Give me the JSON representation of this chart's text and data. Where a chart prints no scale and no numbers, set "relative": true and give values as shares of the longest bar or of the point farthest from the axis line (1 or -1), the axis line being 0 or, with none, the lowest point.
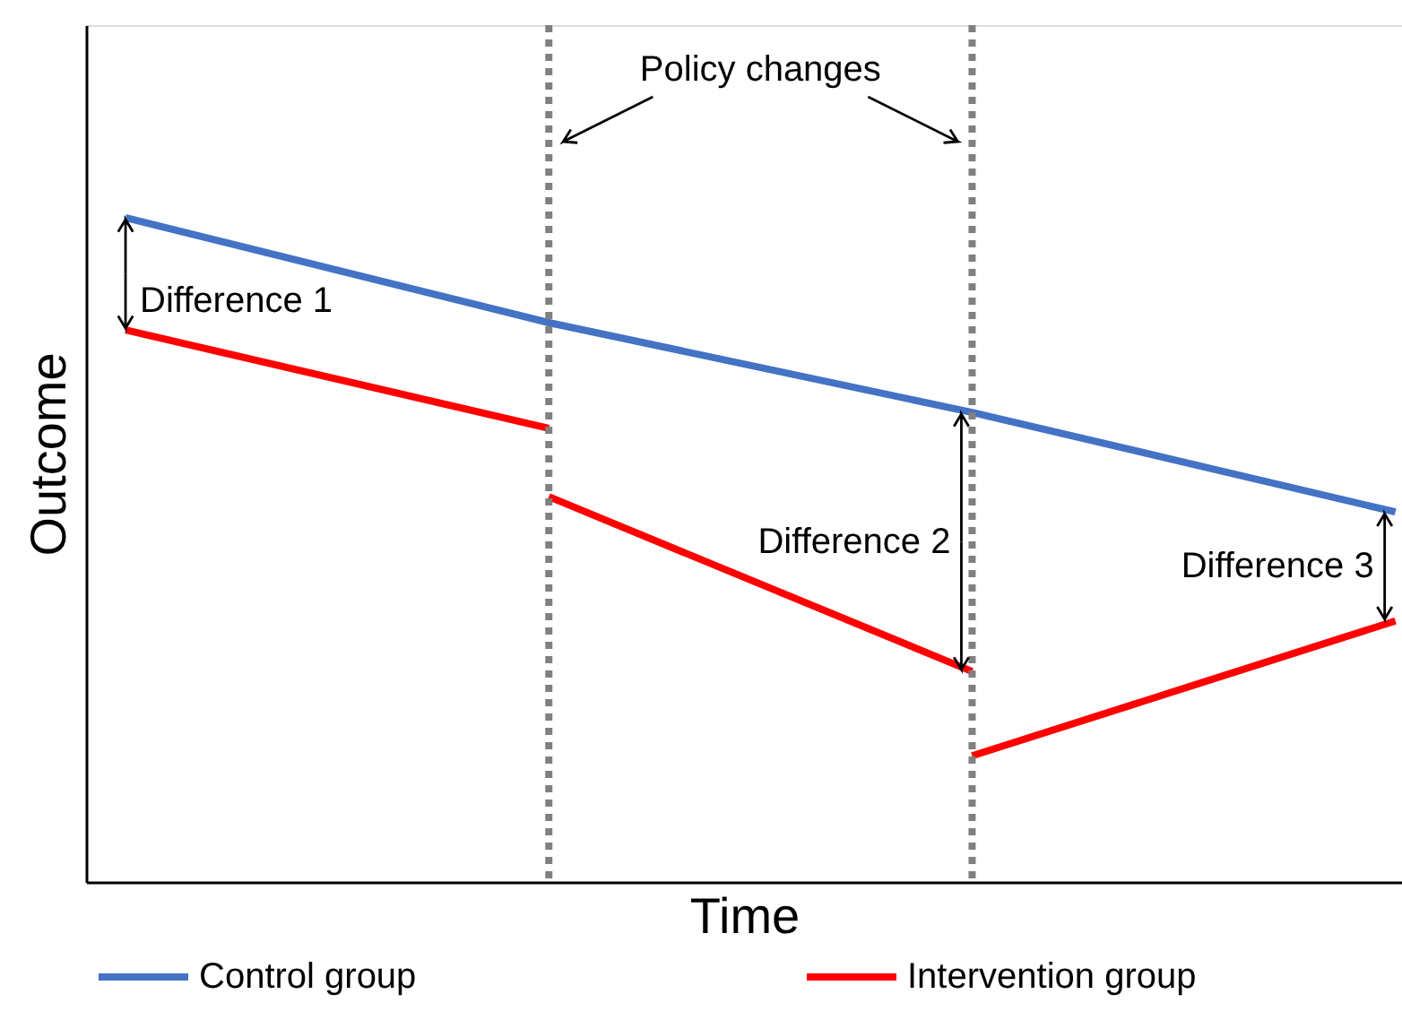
{
  "chart_data": {
    "type": "line",
    "relative": true,
    "xlabel": "Time",
    "ylabel": "Outcome",
    "categories": [
      null,
      null,
      null,
      null
    ],
    "grid": false,
    "legend": "bottom",
    "line_style": "solid",
    "series": [
      {
        "name": "Control group",
        "color": "#4472c4",
        "values": [
          1,
          0.842,
          0.707,
          0.557
        ]
      },
      {
        "name": "Intervention group",
        "color": "#ff0000",
        "values": [
          0.831,
          0.683,
          null,
          null
        ]
      },
      {
        "color": "#ff0000",
        "values": [
          null,
          0.58,
          0.317,
          null
        ]
      },
      {
        "color": "#ff0000",
        "values": [
          null,
          null,
          0.19,
          0.393
        ]
      }
    ],
    "annotations": [
      "Policy changes",
      "Difference 1",
      "Difference 2",
      "Difference 3"
    ]
  }
}
